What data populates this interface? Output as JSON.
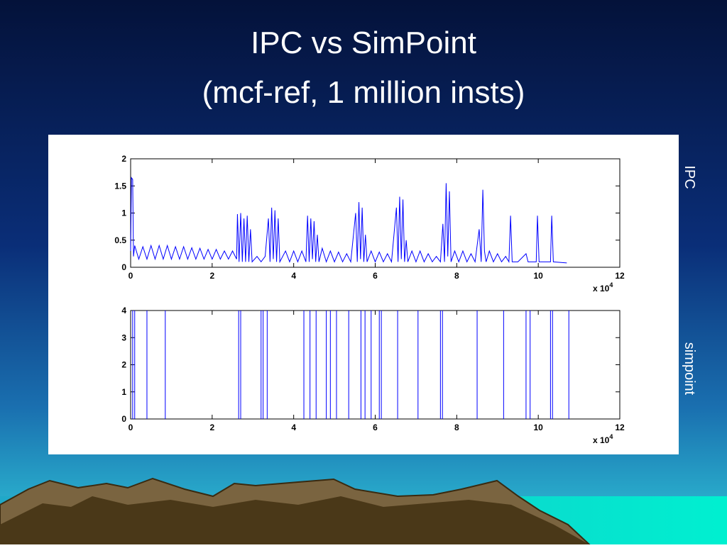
{
  "slide": {
    "title": [
      "IPC vs SimPoint",
      "(mcf-ref, 1 million insts)"
    ]
  },
  "chart_data": [
    {
      "type": "line",
      "ylabel": "IPC",
      "color": "#0000ff",
      "grid": false,
      "x_multiplier": "x 10",
      "x_multiplier_exp": "4",
      "xlim": [
        0,
        12
      ],
      "xticks": [
        0,
        2,
        4,
        6,
        8,
        10,
        12
      ],
      "ylim": [
        0,
        2
      ],
      "yticks": [
        0,
        0.5,
        1,
        1.5,
        2
      ],
      "x": [
        0,
        0.02,
        0.05,
        0.07,
        0.1,
        0.2,
        0.3,
        0.4,
        0.5,
        0.6,
        0.7,
        0.8,
        0.9,
        1.0,
        1.1,
        1.2,
        1.3,
        1.4,
        1.5,
        1.6,
        1.7,
        1.8,
        1.9,
        2.0,
        2.1,
        2.2,
        2.3,
        2.4,
        2.5,
        2.6,
        2.62,
        2.66,
        2.7,
        2.74,
        2.78,
        2.82,
        2.86,
        2.9,
        2.94,
        2.98,
        3.1,
        3.2,
        3.3,
        3.38,
        3.42,
        3.46,
        3.5,
        3.54,
        3.58,
        3.62,
        3.66,
        3.8,
        3.9,
        4.0,
        4.1,
        4.2,
        4.3,
        4.34,
        4.38,
        4.42,
        4.46,
        4.5,
        4.54,
        4.58,
        4.62,
        4.7,
        4.8,
        4.9,
        5.0,
        5.1,
        5.2,
        5.3,
        5.4,
        5.52,
        5.56,
        5.6,
        5.64,
        5.68,
        5.72,
        5.76,
        5.8,
        5.9,
        6.0,
        6.1,
        6.2,
        6.3,
        6.4,
        6.52,
        6.56,
        6.6,
        6.64,
        6.68,
        6.72,
        6.76,
        6.8,
        6.9,
        7.0,
        7.1,
        7.2,
        7.3,
        7.4,
        7.5,
        7.6,
        7.66,
        7.7,
        7.74,
        7.78,
        7.82,
        7.86,
        7.95,
        8.05,
        8.15,
        8.25,
        8.35,
        8.45,
        8.55,
        8.6,
        8.64,
        8.68,
        8.72,
        8.8,
        8.9,
        9.0,
        9.1,
        9.2,
        9.28,
        9.32,
        9.36,
        9.5,
        9.7,
        9.75,
        9.95,
        9.98,
        10.02,
        10.3,
        10.33,
        10.37,
        10.7
      ],
      "values": [
        0.3,
        1.65,
        1.62,
        0.2,
        0.4,
        0.15,
        0.38,
        0.15,
        0.4,
        0.15,
        0.4,
        0.15,
        0.4,
        0.15,
        0.38,
        0.15,
        0.38,
        0.15,
        0.36,
        0.15,
        0.35,
        0.15,
        0.33,
        0.15,
        0.33,
        0.15,
        0.3,
        0.15,
        0.3,
        0.15,
        0.98,
        0.1,
        1.0,
        0.1,
        0.9,
        0.1,
        0.95,
        0.1,
        0.7,
        0.1,
        0.2,
        0.1,
        0.2,
        0.9,
        0.1,
        1.1,
        0.15,
        1.05,
        0.1,
        0.9,
        0.1,
        0.3,
        0.1,
        0.3,
        0.1,
        0.3,
        0.1,
        0.95,
        0.1,
        0.9,
        0.15,
        0.85,
        0.1,
        0.6,
        0.1,
        0.35,
        0.1,
        0.3,
        0.1,
        0.28,
        0.1,
        0.25,
        0.1,
        1.0,
        0.1,
        1.2,
        0.15,
        1.1,
        0.1,
        0.6,
        0.1,
        0.3,
        0.1,
        0.28,
        0.1,
        0.25,
        0.1,
        1.1,
        0.1,
        1.3,
        0.15,
        1.25,
        0.1,
        0.5,
        0.1,
        0.3,
        0.1,
        0.3,
        0.1,
        0.25,
        0.1,
        0.2,
        0.1,
        0.8,
        0.1,
        1.55,
        0.2,
        1.4,
        0.1,
        0.3,
        0.1,
        0.3,
        0.1,
        0.25,
        0.1,
        0.7,
        0.1,
        1.43,
        0.3,
        0.1,
        0.3,
        0.1,
        0.25,
        0.1,
        0.2,
        0.1,
        0.95,
        0.1,
        0.1,
        0.25,
        0.1,
        0.1,
        0.95,
        0.1,
        0.1,
        0.95,
        0.1,
        0.08
      ]
    },
    {
      "type": "stem",
      "ylabel": "simpoint",
      "color": "#0000ff",
      "grid": false,
      "x_multiplier": "x 10",
      "x_multiplier_exp": "4",
      "xlim": [
        0,
        12
      ],
      "xticks": [
        0,
        2,
        4,
        6,
        8,
        10,
        12
      ],
      "ylim": [
        0,
        4
      ],
      "yticks": [
        0,
        1,
        2,
        3,
        4
      ],
      "x": [
        0.05,
        0.1,
        0.4,
        0.85,
        2.65,
        2.7,
        3.2,
        3.25,
        3.35,
        4.25,
        4.4,
        4.55,
        4.8,
        4.9,
        5.05,
        5.35,
        5.65,
        5.75,
        5.9,
        6.1,
        6.15,
        6.55,
        7.05,
        7.6,
        7.65,
        8.5,
        9.15,
        9.7,
        9.8,
        10.3,
        10.35,
        10.75
      ],
      "values": [
        4,
        4,
        4,
        4,
        4,
        4,
        4,
        4,
        4,
        4,
        4,
        4,
        4,
        4,
        4,
        4,
        4,
        4,
        4,
        4,
        4,
        4,
        4,
        4,
        4,
        4,
        4,
        4,
        4,
        4,
        4,
        4
      ]
    }
  ]
}
